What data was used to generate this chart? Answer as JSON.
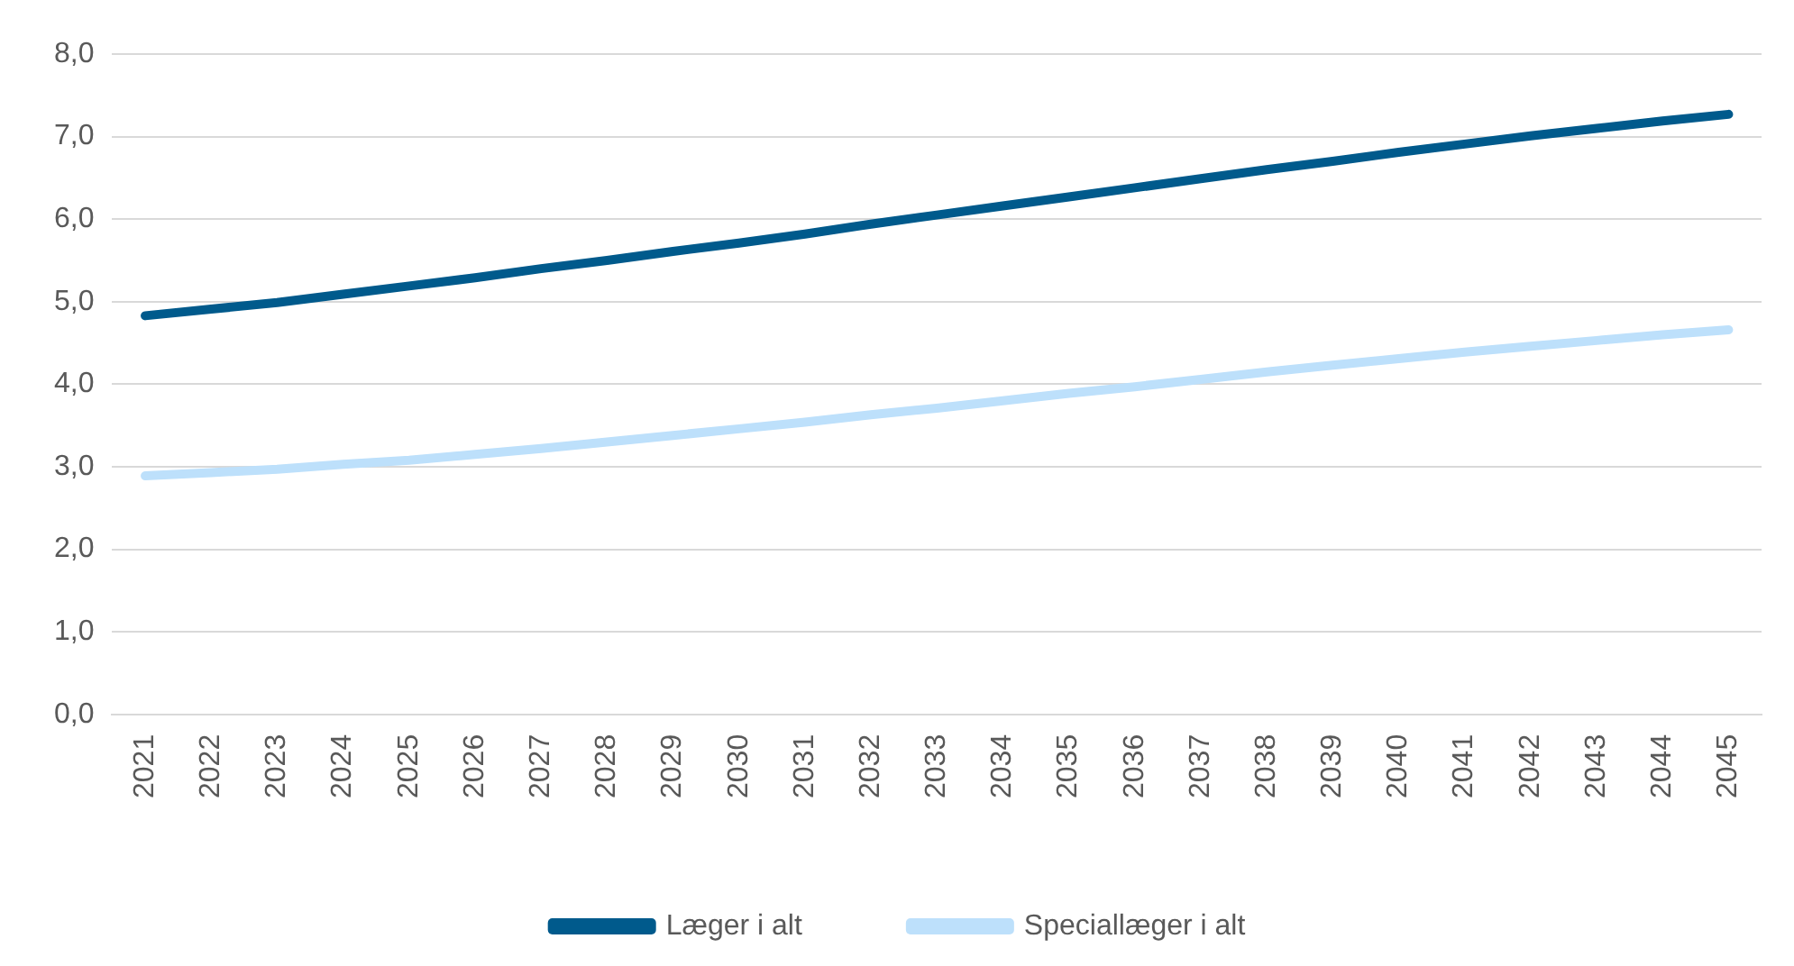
{
  "chart_data": {
    "type": "line",
    "categories": [
      "2021",
      "2022",
      "2023",
      "2024",
      "2025",
      "2026",
      "2027",
      "2028",
      "2029",
      "2030",
      "2031",
      "2032",
      "2033",
      "2034",
      "2035",
      "2036",
      "2037",
      "2038",
      "2039",
      "2040",
      "2041",
      "2042",
      "2043",
      "2044",
      "2045"
    ],
    "series": [
      {
        "name": "Læger i alt",
        "color": "#005a8c",
        "values": [
          4.83,
          4.91,
          4.99,
          5.09,
          5.19,
          5.29,
          5.4,
          5.5,
          5.61,
          5.71,
          5.82,
          5.94,
          6.05,
          6.16,
          6.27,
          6.38,
          6.49,
          6.6,
          6.7,
          6.81,
          6.91,
          7.01,
          7.1,
          7.19,
          7.27
        ]
      },
      {
        "name": "Speciallæger i alt",
        "color": "#bde0fb",
        "values": [
          2.89,
          2.93,
          2.97,
          3.03,
          3.08,
          3.15,
          3.22,
          3.3,
          3.38,
          3.46,
          3.54,
          3.63,
          3.71,
          3.8,
          3.89,
          3.97,
          4.06,
          4.15,
          4.23,
          4.31,
          4.39,
          4.46,
          4.53,
          4.6,
          4.66
        ]
      }
    ],
    "ylim": [
      0,
      8
    ],
    "yticks": [
      {
        "value": 0,
        "label": "0,0"
      },
      {
        "value": 1,
        "label": "1,0"
      },
      {
        "value": 2,
        "label": "2,0"
      },
      {
        "value": 3,
        "label": "3,0"
      },
      {
        "value": 4,
        "label": "4,0"
      },
      {
        "value": 5,
        "label": "5,0"
      },
      {
        "value": 6,
        "label": "6,0"
      },
      {
        "value": 7,
        "label": "7,0"
      },
      {
        "value": 8,
        "label": "8,0"
      }
    ],
    "grid": "y",
    "legend": "bottom",
    "marker": "none",
    "line_style": "solid"
  }
}
